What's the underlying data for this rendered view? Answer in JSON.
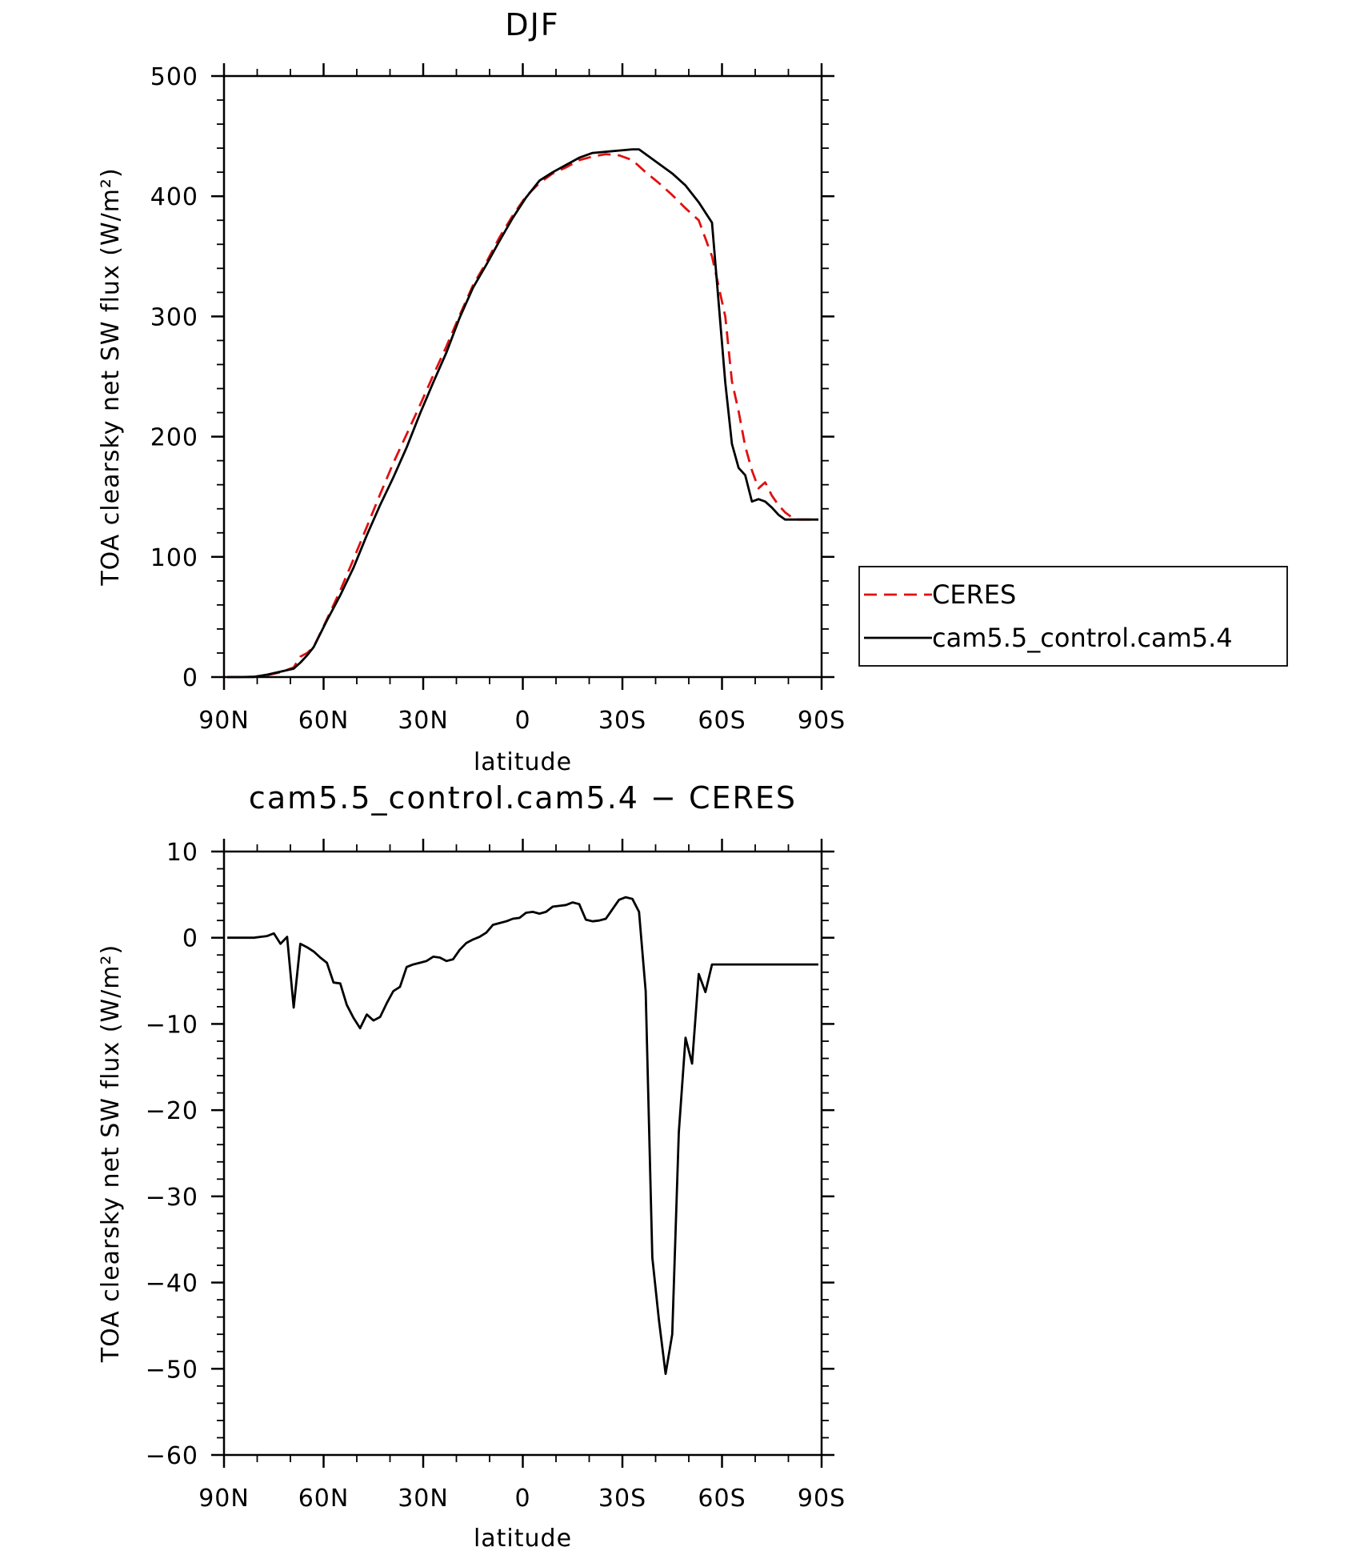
{
  "chart_data": [
    {
      "type": "line",
      "title": "DJF",
      "xlabel": "latitude",
      "ylabel": "TOA clearsky net SW flux (W/m²)",
      "x_ticks": [
        "90N",
        "60N",
        "30N",
        "0",
        "30S",
        "60S",
        "90S"
      ],
      "x_tick_values": [
        -90,
        -60,
        -30,
        0,
        30,
        60,
        90
      ],
      "xlim": [
        -90,
        90
      ],
      "ylim": [
        0,
        500
      ],
      "y_ticks": [
        0,
        100,
        200,
        300,
        400,
        500
      ],
      "legend": {
        "placement": "right",
        "entries": [
          "CERES",
          "cam5.5_control.cam5.4"
        ]
      },
      "series": [
        {
          "name": "CERES",
          "color": "#e01010",
          "dash": "dashed",
          "x": [
            -89,
            -85,
            -81,
            -77,
            -73,
            -69,
            -67,
            -65,
            -63,
            -59,
            -55,
            -51,
            -47,
            -43,
            -39,
            -35,
            -31,
            -27,
            -23,
            -19,
            -15,
            -11,
            -7,
            -3,
            1,
            5,
            9,
            13,
            17,
            21,
            25,
            29,
            33,
            37,
            41,
            45,
            49,
            53,
            57,
            61,
            63,
            65,
            67,
            69,
            71,
            73,
            75,
            77,
            79,
            81,
            83,
            85,
            87,
            89
          ],
          "y": [
            0,
            0,
            0.2,
            1.5,
            4,
            8,
            17,
            20,
            25,
            48,
            72,
            98,
            125,
            152,
            178,
            202,
            226,
            251,
            275,
            301,
            326,
            345,
            366,
            384,
            400,
            411,
            419,
            424,
            430,
            433,
            435,
            434,
            430,
            420,
            411,
            401,
            390,
            380,
            350,
            300,
            246,
            221,
            192,
            172,
            157,
            162,
            151,
            143,
            137,
            133,
            131,
            131,
            131,
            131
          ]
        },
        {
          "name": "cam5.5_control.cam5.4",
          "color": "#000000",
          "dash": "solid",
          "x": [
            -89,
            -85,
            -81,
            -77,
            -73,
            -69,
            -67,
            -65,
            -63,
            -59,
            -55,
            -51,
            -47,
            -43,
            -39,
            -35,
            -31,
            -27,
            -23,
            -19,
            -15,
            -11,
            -7,
            -3,
            1,
            5,
            9,
            13,
            17,
            21,
            25,
            29,
            33,
            35,
            37,
            41,
            45,
            49,
            53,
            57,
            61,
            63,
            65,
            67,
            69,
            71,
            73,
            75,
            77,
            79,
            81,
            83,
            85,
            87,
            89
          ],
          "y": [
            0,
            0,
            0.2,
            2,
            4.5,
            7,
            12,
            18,
            25,
            47,
            68,
            91,
            118,
            143,
            166,
            191,
            219,
            245,
            270,
            299,
            324,
            343,
            363,
            382,
            399,
            413,
            420,
            426,
            432,
            436,
            437,
            438,
            439,
            439,
            435,
            427,
            419,
            409,
            395,
            378,
            245,
            194,
            174,
            168,
            146,
            148,
            146,
            141,
            135,
            131,
            131,
            131,
            131,
            131,
            131
          ]
        }
      ]
    },
    {
      "type": "line",
      "title": "cam5.5_control.cam5.4 − CERES",
      "xlabel": "latitude",
      "ylabel": "TOA clearsky net SW flux (W/m²)",
      "x_ticks": [
        "90N",
        "60N",
        "30N",
        "0",
        "30S",
        "60S",
        "90S"
      ],
      "x_tick_values": [
        -90,
        -60,
        -30,
        0,
        30,
        60,
        90
      ],
      "xlim": [
        -90,
        90
      ],
      "ylim": [
        -60,
        10
      ],
      "y_ticks": [
        -60,
        -50,
        -40,
        -30,
        -20,
        -10,
        0,
        10
      ],
      "series": [
        {
          "color": "#000000",
          "dash": "solid",
          "x": [
            -89,
            -87,
            -85,
            -83,
            -81,
            -79,
            -77,
            -75,
            -73,
            -71,
            -69,
            -67,
            -65,
            -63,
            -61,
            -59,
            -57,
            -55,
            -53,
            -51,
            -49,
            -47,
            -45,
            -43,
            -41,
            -39,
            -37,
            -35,
            -33,
            -31,
            -29,
            -27,
            -25,
            -23,
            -21,
            -19,
            -17,
            -15,
            -13,
            -11,
            -9,
            -7,
            -5,
            -3,
            -1,
            1,
            3,
            5,
            7,
            9,
            11,
            13,
            15,
            17,
            19,
            21,
            23,
            25,
            27,
            29,
            31,
            33,
            35,
            37,
            39,
            41,
            43,
            45,
            47,
            49,
            51,
            53,
            55,
            57,
            59,
            61,
            63,
            65,
            67,
            69,
            71,
            73,
            75,
            77,
            79,
            81,
            83,
            85,
            87,
            89
          ],
          "y": [
            0,
            0,
            0,
            0,
            0,
            0.1,
            0.2,
            0.5,
            -0.7,
            0.1,
            -8.1,
            -0.7,
            -1.1,
            -1.6,
            -2.3,
            -2.9,
            -5.2,
            -5.3,
            -7.8,
            -9.3,
            -10.5,
            -8.9,
            -9.6,
            -9.2,
            -7.6,
            -6.2,
            -5.7,
            -3.4,
            -3.1,
            -2.9,
            -2.7,
            -2.2,
            -2.3,
            -2.7,
            -2.5,
            -1.4,
            -0.6,
            -0.2,
            0.1,
            0.6,
            1.5,
            1.7,
            1.9,
            2.2,
            2.3,
            2.9,
            3.0,
            2.8,
            3.0,
            3.6,
            3.7,
            3.8,
            4.1,
            3.9,
            2.1,
            1.9,
            2.0,
            2.2,
            3.3,
            4.4,
            4.7,
            4.5,
            3.0,
            -6.2,
            -37.1,
            -44.3,
            -50.6,
            -46.0,
            -22.6,
            -11.6,
            -14.6,
            -4.2,
            -6.3,
            -3.1,
            -3.1,
            -3.1,
            -3.1,
            -3.1,
            -3.1,
            -3.1,
            -3.1,
            -3.1,
            -3.1,
            -3.1,
            -3.1,
            -3.1,
            -3.1,
            -3.1,
            -3.1,
            -3.1
          ]
        }
      ]
    }
  ]
}
